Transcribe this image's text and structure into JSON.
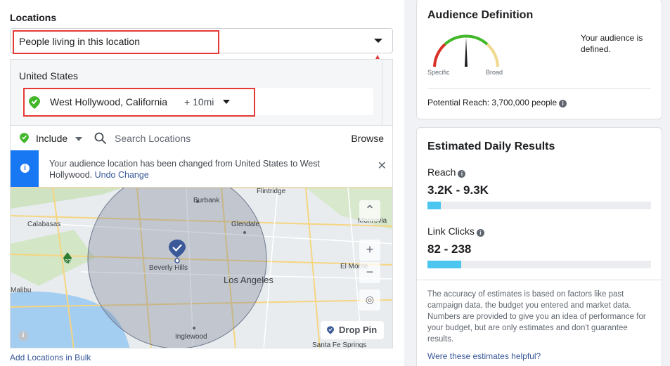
{
  "locations": {
    "title": "Locations",
    "type_select": "People living in this location",
    "country": "United States",
    "selected_location": {
      "name": "West Hollywood, California",
      "radius": "+ 10mi"
    },
    "include_label": "Include",
    "search_placeholder": "Search Locations",
    "browse_label": "Browse",
    "notice": {
      "message": "Your audience location has been changed from United States to West Hollywood.",
      "undo_label": "Undo Change"
    },
    "map": {
      "labels": [
        "Flintridge",
        "Calabasas",
        "Burbank",
        "Glendale",
        "Monrovia",
        "Beverly Hills",
        "El Monte",
        "Los Angeles",
        "Malibu",
        "Inglewood",
        "Santa Fe Springs",
        "27"
      ],
      "drop_pin_label": "Drop Pin"
    },
    "bulk_link": "Add Locations in Bulk"
  },
  "audience": {
    "title": "Audience Definition",
    "gauge_left": "Specific",
    "gauge_right": "Broad",
    "status": "Your audience is defined.",
    "potential_reach": "Potential Reach: 3,700,000 people"
  },
  "estimates": {
    "title": "Estimated Daily Results",
    "reach": {
      "label": "Reach",
      "value": "3.2K - 9.3K",
      "fill_fraction": 0.06
    },
    "link_clicks": {
      "label": "Link Clicks",
      "value": "82 - 238",
      "fill_fraction": 0.15
    },
    "disclaimer": "The accuracy of estimates is based on factors like past campaign data, the budget you entered and market data. Numbers are provided to give you an idea of performance for your budget, but are only estimates and don't guarantee results.",
    "helpful_link": "Were these estimates helpful?"
  },
  "colors": {
    "accent": "#1877f2",
    "highlight": "#e53935",
    "bar_fill": "#4cc5ef",
    "pin_green": "#42b72a",
    "pin_blue": "#3b5998"
  }
}
